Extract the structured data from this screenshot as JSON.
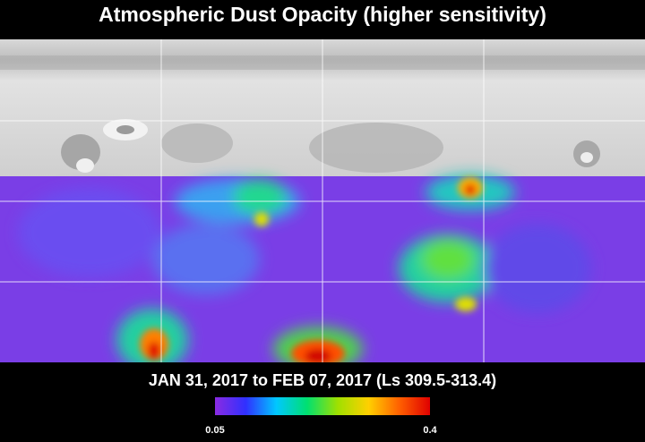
{
  "header": {
    "title": "Atmospheric Dust Opacity (higher sensitivity)"
  },
  "date_range": "JAN 31, 2017 to FEB 07, 2017 (Ls 309.5-313.4)",
  "colorbar": {
    "range": [
      0.05,
      0.4
    ],
    "colors": [
      "#8a2be2",
      "#3030ff",
      "#00c8ff",
      "#00e070",
      "#a0e000",
      "#ffd000",
      "#ff6000",
      "#e00000"
    ]
  }
}
